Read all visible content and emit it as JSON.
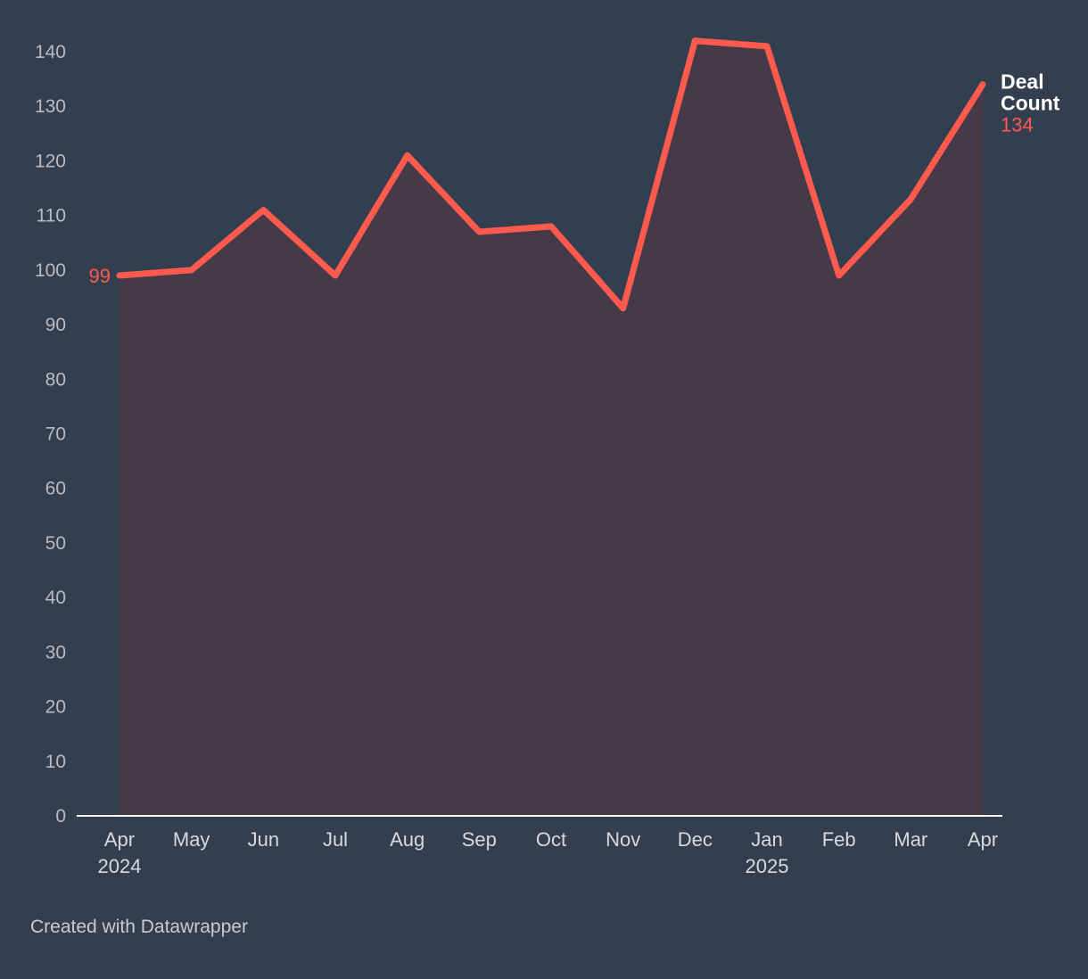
{
  "chart_data": {
    "type": "area",
    "title": "",
    "xlabel": "",
    "ylabel": "",
    "ylim": [
      0,
      140
    ],
    "y_ticks": [
      "0",
      "10",
      "20",
      "30",
      "40",
      "50",
      "60",
      "70",
      "80",
      "90",
      "100",
      "110",
      "120",
      "130",
      "140"
    ],
    "categories": [
      "Apr",
      "May",
      "Jun",
      "Jul",
      "Aug",
      "Sep",
      "Oct",
      "Nov",
      "Dec",
      "Jan",
      "Feb",
      "Mar",
      "Apr"
    ],
    "year_labels": [
      "2024",
      "",
      "",
      "",
      "",
      "",
      "",
      "",
      "",
      "2025",
      "",
      "",
      ""
    ],
    "series": [
      {
        "name": "Deal Count",
        "name_lines": [
          "Deal",
          "Count"
        ],
        "values": [
          99,
          100,
          111,
          99,
          121,
          107,
          108,
          93,
          142,
          141,
          99,
          113,
          134
        ]
      }
    ],
    "start_label": "99",
    "end_label": "134",
    "grid": false,
    "legend": "direct label at line end"
  },
  "colors": {
    "background": "#333f4f",
    "line": "#ff5a4e",
    "area": "#463a48",
    "axis": "#ffffff"
  },
  "footer": {
    "credit": "Created with Datawrapper"
  }
}
